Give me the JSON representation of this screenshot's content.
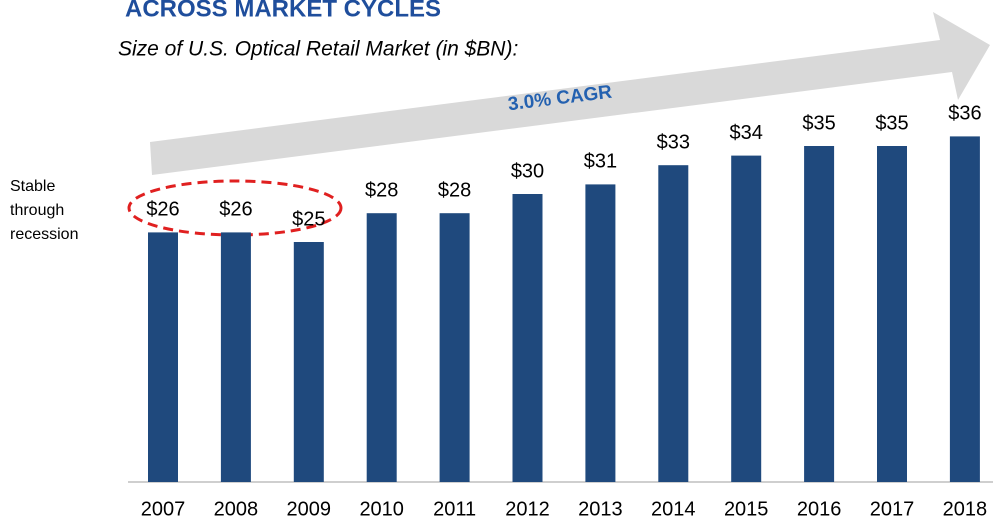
{
  "chart_data": {
    "type": "bar",
    "title": "ACROSS MARKET CYCLES",
    "subtitle": "Size of U.S. Optical Retail Market (in $BN):",
    "annotations": {
      "cagr": "3.0% CAGR",
      "note": [
        "Stable",
        "through",
        "recession"
      ]
    },
    "categories": [
      "2007",
      "2008",
      "2009",
      "2010",
      "2011",
      "2012",
      "2013",
      "2014",
      "2015",
      "2016",
      "2017",
      "2018"
    ],
    "values": [
      26,
      26,
      25,
      28,
      28,
      30,
      31,
      33,
      34,
      35,
      35,
      36
    ],
    "value_labels": [
      "$26",
      "$26",
      "$25",
      "$28",
      "$28",
      "$30",
      "$31",
      "$33",
      "$34",
      "$35",
      "$35",
      "$36"
    ],
    "color": "#1f497d",
    "ylim": [
      0,
      50
    ]
  }
}
